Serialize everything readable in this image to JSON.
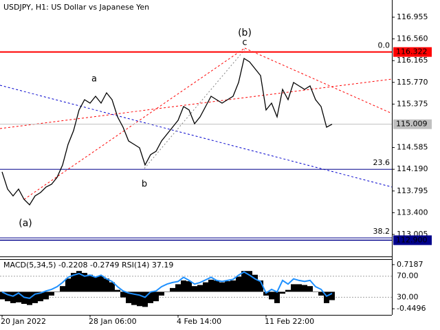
{
  "chart_data": [
    {
      "type": "line",
      "title": "USDJPY, H1:  US Dollar vs Japanese Yen",
      "categories": [
        "20 Jan 2022",
        null,
        null,
        null,
        null,
        null,
        null,
        null,
        null,
        null,
        null,
        null,
        null,
        null,
        null,
        null,
        "28 Jan 06:00",
        null,
        null,
        null,
        null,
        null,
        null,
        null,
        null,
        null,
        null,
        null,
        null,
        null,
        null,
        null,
        "4 Feb 14:00",
        null,
        null,
        null,
        null,
        null,
        null,
        null,
        null,
        null,
        null,
        null,
        null,
        null,
        null,
        null,
        "11 Feb 22:00",
        null,
        null,
        null,
        null,
        null,
        null,
        null,
        null,
        null,
        null,
        null,
        null
      ],
      "values": [
        114.143,
        113.83,
        113.705,
        113.83,
        113.643,
        113.543,
        113.705,
        113.768,
        113.868,
        113.918,
        114.043,
        114.268,
        114.643,
        114.893,
        115.268,
        115.455,
        115.393,
        115.518,
        115.393,
        115.58,
        115.455,
        115.143,
        114.955,
        114.705,
        114.643,
        114.58,
        114.268,
        114.455,
        114.518,
        114.705,
        114.83,
        114.955,
        115.08,
        115.33,
        115.268,
        115.018,
        115.143,
        115.33,
        115.518,
        115.455,
        115.393,
        115.455,
        115.518,
        115.768,
        116.205,
        116.143,
        116.018,
        115.893,
        115.268,
        115.393,
        115.143,
        115.643,
        115.455,
        115.768,
        115.705,
        115.643,
        115.705,
        115.455,
        115.33,
        114.955,
        115.009
      ],
      "color": "#000000",
      "ylim": [
        112.6175,
        117.2675
      ],
      "yticks": [
        116.955,
        {
          "value": 116.56,
          "label": "116.560"
        },
        116.165,
        {
          "value": 115.77,
          "label": "115.770"
        },
        115.375,
        114.585,
        {
          "value": 114.19,
          "label": "114.190"
        },
        113.795,
        {
          "value": 113.4,
          "label": "113.400"
        },
        113.005
      ],
      "price_tags": [
        {
          "value": 116.322,
          "color": "#ff0000"
        },
        {
          "value": 115.009,
          "color": "#c0c0c0"
        },
        {
          "value": 112.9,
          "label": "112.900",
          "color": "#00008b"
        }
      ],
      "fib_levels": [
        {
          "label": "0.0",
          "value": 116.322,
          "color": "#ff0000"
        },
        {
          "label": "23.6",
          "value": 114.19,
          "color": "#00008b"
        },
        {
          "label": "38.2",
          "value": 112.943,
          "color": "#00008b"
        }
      ],
      "annotations": [
        {
          "text": "(a)",
          "color": "#e00000"
        },
        {
          "text": "a",
          "color": "#707070"
        },
        {
          "text": "b",
          "color": "#707070"
        },
        {
          "text": "(b)",
          "color": "#e00000"
        },
        {
          "text": "c",
          "color": "#707070"
        }
      ]
    },
    {
      "type": "bar",
      "title": "MACD(5,34,5) -0.2208 -0.2749 RSI(14) 37.19",
      "ylim": [
        -0.6113,
        0.8445
      ],
      "yticks": [
        0.7187,
        -0.4496
      ],
      "y2lim": [
        -3.5,
        101
      ],
      "y2ticks": [
        {
          "value": 70,
          "label": "70.00"
        },
        {
          "value": 30,
          "label": "30.00"
        }
      ],
      "series": [
        {
          "type": "bar",
          "color": "#000000",
          "values": [
            -0.2,
            -0.25,
            -0.3,
            -0.28,
            -0.32,
            -0.35,
            -0.3,
            -0.25,
            -0.2,
            -0.1,
            0.0,
            0.15,
            0.35,
            0.5,
            0.55,
            0.5,
            0.45,
            0.4,
            0.42,
            0.35,
            0.25,
            0.05,
            -0.15,
            -0.3,
            -0.35,
            -0.38,
            -0.4,
            -0.3,
            -0.25,
            -0.1,
            0.0,
            0.1,
            0.2,
            0.3,
            0.28,
            0.15,
            0.18,
            0.25,
            0.32,
            0.3,
            0.25,
            0.28,
            0.3,
            0.4,
            0.55,
            0.55,
            0.45,
            0.3,
            -0.1,
            -0.2,
            -0.3,
            -0.05,
            0.05,
            0.2,
            0.2,
            0.18,
            0.15,
            0.0,
            -0.1,
            -0.3,
            -0.2208
          ]
        },
        {
          "type": "line",
          "color": "#1e90ff",
          "axis": "y2",
          "values": [
            40,
            35,
            32,
            38,
            30,
            28,
            36,
            38,
            42,
            45,
            50,
            58,
            68,
            72,
            75,
            70,
            72,
            68,
            72,
            65,
            60,
            50,
            42,
            38,
            36,
            34,
            30,
            40,
            42,
            50,
            55,
            58,
            60,
            68,
            62,
            55,
            58,
            63,
            68,
            62,
            60,
            62,
            64,
            72,
            78,
            72,
            65,
            60,
            38,
            45,
            40,
            62,
            55,
            65,
            62,
            60,
            62,
            50,
            45,
            32,
            37.19
          ]
        }
      ]
    }
  ]
}
